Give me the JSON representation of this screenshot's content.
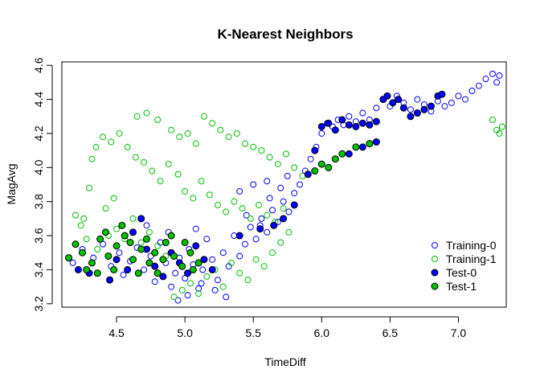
{
  "chart_data": {
    "type": "scatter",
    "title": "K-Nearest Neighbors",
    "xlabel": "TimeDiff",
    "ylabel": "MagAvg",
    "xlim": [
      4.1,
      7.35
    ],
    "ylim": [
      3.18,
      4.62
    ],
    "xticks": [
      4.5,
      5.0,
      5.5,
      6.0,
      6.5,
      7.0
    ],
    "xtick_labels": [
      "4.5",
      "5.0",
      "5.5",
      "6.0",
      "6.5",
      "7.0"
    ],
    "yticks": [
      3.2,
      3.4,
      3.6,
      3.8,
      4.0,
      4.2,
      4.4,
      4.6
    ],
    "ytick_labels": [
      "3.2",
      "3.4",
      "3.6",
      "3.8",
      "4.0",
      "4.2",
      "4.4",
      "4.6"
    ],
    "grid": false,
    "legend_position": "bottom-right",
    "series": [
      {
        "name": "Training-0",
        "marker": "open-circle",
        "color": "#0000FF",
        "points": [
          [
            4.18,
            3.44
          ],
          [
            4.25,
            3.52
          ],
          [
            4.33,
            3.47
          ],
          [
            4.4,
            3.55
          ],
          [
            4.46,
            3.42
          ],
          [
            4.52,
            3.5
          ],
          [
            4.55,
            3.37
          ],
          [
            4.6,
            3.45
          ],
          [
            4.65,
            3.53
          ],
          [
            4.7,
            3.4
          ],
          [
            4.75,
            3.48
          ],
          [
            4.78,
            3.33
          ],
          [
            4.82,
            3.56
          ],
          [
            4.86,
            3.44
          ],
          [
            4.9,
            3.3
          ],
          [
            4.93,
            3.38
          ],
          [
            4.96,
            3.47
          ],
          [
            5.0,
            3.35
          ],
          [
            5.03,
            3.52
          ],
          [
            5.06,
            3.43
          ],
          [
            5.1,
            3.29
          ],
          [
            5.13,
            3.4
          ],
          [
            5.16,
            3.58
          ],
          [
            5.2,
            3.46
          ],
          [
            5.24,
            3.34
          ],
          [
            5.28,
            3.5
          ],
          [
            5.32,
            3.42
          ],
          [
            5.36,
            3.6
          ],
          [
            5.4,
            3.48
          ],
          [
            5.44,
            3.55
          ],
          [
            5.48,
            3.65
          ],
          [
            5.52,
            3.58
          ],
          [
            5.56,
            3.7
          ],
          [
            5.6,
            3.62
          ],
          [
            5.64,
            3.75
          ],
          [
            5.68,
            3.68
          ],
          [
            5.72,
            3.8
          ],
          [
            5.76,
            3.74
          ],
          [
            5.8,
            3.85
          ],
          [
            5.84,
            3.9
          ],
          [
            5.88,
            3.98
          ],
          [
            5.92,
            4.05
          ],
          [
            5.96,
            4.12
          ],
          [
            6.0,
            4.2
          ],
          [
            6.04,
            4.26
          ],
          [
            6.08,
            4.24
          ],
          [
            6.12,
            4.28
          ],
          [
            6.16,
            4.25
          ],
          [
            6.2,
            4.3
          ],
          [
            6.25,
            4.27
          ],
          [
            6.3,
            4.32
          ],
          [
            6.35,
            4.28
          ],
          [
            6.4,
            4.35
          ],
          [
            6.45,
            4.4
          ],
          [
            6.5,
            4.36
          ],
          [
            6.55,
            4.42
          ],
          [
            6.6,
            4.38
          ],
          [
            6.65,
            4.34
          ],
          [
            6.7,
            4.4
          ],
          [
            6.75,
            4.37
          ],
          [
            6.8,
            4.33
          ],
          [
            6.85,
            4.39
          ],
          [
            6.9,
            4.36
          ],
          [
            6.95,
            4.38
          ],
          [
            7.0,
            4.42
          ],
          [
            7.05,
            4.4
          ],
          [
            7.1,
            4.45
          ],
          [
            7.15,
            4.48
          ],
          [
            7.2,
            4.52
          ],
          [
            7.25,
            4.55
          ],
          [
            7.3,
            4.54
          ],
          [
            7.28,
            4.5
          ],
          [
            4.95,
            3.22
          ],
          [
            5.02,
            3.25
          ],
          [
            5.12,
            3.32
          ],
          [
            5.22,
            3.28
          ],
          [
            5.3,
            3.24
          ],
          [
            4.88,
            3.62
          ],
          [
            4.72,
            3.66
          ],
          [
            5.08,
            3.64
          ],
          [
            5.4,
            3.86
          ],
          [
            5.5,
            3.9
          ],
          [
            5.6,
            3.92
          ],
          [
            5.7,
            3.88
          ],
          [
            5.45,
            3.72
          ],
          [
            5.55,
            3.66
          ],
          [
            5.62,
            3.82
          ],
          [
            5.75,
            3.95
          ]
        ]
      },
      {
        "name": "Training-1",
        "marker": "open-circle",
        "color": "#00C000",
        "points": [
          [
            4.2,
            3.72
          ],
          [
            4.26,
            3.7
          ],
          [
            4.3,
            3.88
          ],
          [
            4.32,
            4.05
          ],
          [
            4.35,
            4.12
          ],
          [
            4.4,
            4.18
          ],
          [
            4.46,
            4.15
          ],
          [
            4.52,
            4.2
          ],
          [
            4.58,
            4.12
          ],
          [
            4.64,
            4.06
          ],
          [
            4.7,
            4.03
          ],
          [
            4.76,
            3.98
          ],
          [
            4.82,
            3.92
          ],
          [
            4.9,
            4.22
          ],
          [
            4.96,
            4.18
          ],
          [
            5.02,
            4.2
          ],
          [
            5.08,
            4.14
          ],
          [
            5.14,
            4.3
          ],
          [
            5.2,
            4.26
          ],
          [
            5.26,
            4.22
          ],
          [
            5.32,
            4.18
          ],
          [
            5.38,
            4.2
          ],
          [
            5.44,
            4.14
          ],
          [
            5.5,
            4.12
          ],
          [
            5.56,
            4.1
          ],
          [
            5.62,
            4.06
          ],
          [
            5.68,
            4.02
          ],
          [
            5.74,
            4.08
          ],
          [
            5.8,
            4.0
          ],
          [
            5.86,
            3.95
          ],
          [
            4.65,
            4.3
          ],
          [
            4.72,
            4.32
          ],
          [
            4.8,
            4.28
          ],
          [
            4.88,
            4.02
          ],
          [
            4.95,
            3.96
          ],
          [
            5.0,
            3.86
          ],
          [
            5.06,
            3.82
          ],
          [
            5.12,
            3.92
          ],
          [
            5.18,
            3.84
          ],
          [
            5.24,
            3.78
          ],
          [
            5.3,
            3.74
          ],
          [
            5.36,
            3.8
          ],
          [
            5.42,
            3.76
          ],
          [
            5.48,
            3.7
          ],
          [
            5.54,
            3.78
          ],
          [
            5.6,
            3.72
          ],
          [
            5.66,
            3.68
          ],
          [
            5.72,
            3.76
          ],
          [
            4.44,
            3.6
          ],
          [
            4.5,
            3.64
          ],
          [
            4.56,
            3.58
          ],
          [
            4.62,
            3.7
          ],
          [
            4.68,
            3.56
          ],
          [
            4.74,
            3.62
          ],
          [
            4.8,
            3.54
          ],
          [
            4.86,
            3.48
          ],
          [
            4.92,
            3.24
          ],
          [
            4.98,
            3.28
          ],
          [
            5.04,
            3.32
          ],
          [
            5.1,
            3.26
          ],
          [
            5.16,
            3.36
          ],
          [
            5.22,
            3.4
          ],
          [
            5.28,
            3.3
          ],
          [
            5.34,
            3.44
          ],
          [
            5.4,
            3.38
          ],
          [
            5.46,
            3.34
          ],
          [
            5.52,
            3.46
          ],
          [
            5.58,
            3.42
          ],
          [
            5.64,
            3.5
          ],
          [
            5.7,
            3.56
          ],
          [
            5.76,
            3.62
          ],
          [
            7.25,
            4.28
          ],
          [
            7.28,
            4.22
          ],
          [
            7.3,
            4.2
          ],
          [
            7.32,
            4.24
          ],
          [
            4.24,
            3.66
          ],
          [
            4.28,
            3.58
          ],
          [
            4.36,
            3.52
          ],
          [
            4.42,
            3.76
          ],
          [
            4.48,
            3.82
          ]
        ]
      },
      {
        "name": "Test-0",
        "marker": "filled-circle",
        "color": "#0000FF",
        "points": [
          [
            4.22,
            3.4
          ],
          [
            4.3,
            3.38
          ],
          [
            4.45,
            3.34
          ],
          [
            4.5,
            3.46
          ],
          [
            4.58,
            3.4
          ],
          [
            4.62,
            3.62
          ],
          [
            4.68,
            3.7
          ],
          [
            4.72,
            3.52
          ],
          [
            4.78,
            3.42
          ],
          [
            4.84,
            3.36
          ],
          [
            4.9,
            3.5
          ],
          [
            4.96,
            3.44
          ],
          [
            5.02,
            3.38
          ],
          [
            5.08,
            3.54
          ],
          [
            5.14,
            3.46
          ],
          [
            5.2,
            3.4
          ],
          [
            5.4,
            3.6
          ],
          [
            5.55,
            3.64
          ],
          [
            5.65,
            3.66
          ],
          [
            5.72,
            3.7
          ],
          [
            5.8,
            3.78
          ],
          [
            5.9,
            3.96
          ],
          [
            5.95,
            4.1
          ],
          [
            6.0,
            4.24
          ],
          [
            6.05,
            4.26
          ],
          [
            6.1,
            4.22
          ],
          [
            6.15,
            4.28
          ],
          [
            6.2,
            4.25
          ],
          [
            6.25,
            4.24
          ],
          [
            6.3,
            4.26
          ],
          [
            6.35,
            4.25
          ],
          [
            6.4,
            4.27
          ],
          [
            6.45,
            4.4
          ],
          [
            6.48,
            4.42
          ],
          [
            6.52,
            4.38
          ],
          [
            6.56,
            4.4
          ],
          [
            6.6,
            4.35
          ],
          [
            6.65,
            4.3
          ],
          [
            6.7,
            4.32
          ],
          [
            6.75,
            4.34
          ],
          [
            6.8,
            4.36
          ],
          [
            6.85,
            4.42
          ],
          [
            6.88,
            4.43
          ],
          [
            6.2,
            4.08
          ],
          [
            6.3,
            4.12
          ],
          [
            6.4,
            4.15
          ]
        ]
      },
      {
        "name": "Test-1",
        "marker": "filled-circle",
        "color": "#00C000",
        "points": [
          [
            4.15,
            3.47
          ],
          [
            4.2,
            3.55
          ],
          [
            4.25,
            3.5
          ],
          [
            4.32,
            3.44
          ],
          [
            4.38,
            3.58
          ],
          [
            4.44,
            3.48
          ],
          [
            4.5,
            3.54
          ],
          [
            4.56,
            3.6
          ],
          [
            4.62,
            3.46
          ],
          [
            4.68,
            3.52
          ],
          [
            4.74,
            3.44
          ],
          [
            4.8,
            3.38
          ],
          [
            4.86,
            3.56
          ],
          [
            4.92,
            3.48
          ],
          [
            4.98,
            3.42
          ],
          [
            5.04,
            3.5
          ],
          [
            5.1,
            3.44
          ],
          [
            4.48,
            3.4
          ],
          [
            4.54,
            3.66
          ],
          [
            4.6,
            3.56
          ],
          [
            4.66,
            3.38
          ],
          [
            4.72,
            3.58
          ],
          [
            4.78,
            3.5
          ],
          [
            4.84,
            3.46
          ],
          [
            5.95,
            3.98
          ],
          [
            6.0,
            4.02
          ],
          [
            6.05,
            4.0
          ],
          [
            6.1,
            4.05
          ],
          [
            6.15,
            4.08
          ],
          [
            6.25,
            4.12
          ],
          [
            6.35,
            4.14
          ],
          [
            4.28,
            3.4
          ],
          [
            4.36,
            3.38
          ],
          [
            4.42,
            3.62
          ],
          [
            4.9,
            3.6
          ],
          [
            5.0,
            3.56
          ],
          [
            5.06,
            3.4
          ]
        ]
      }
    ]
  }
}
